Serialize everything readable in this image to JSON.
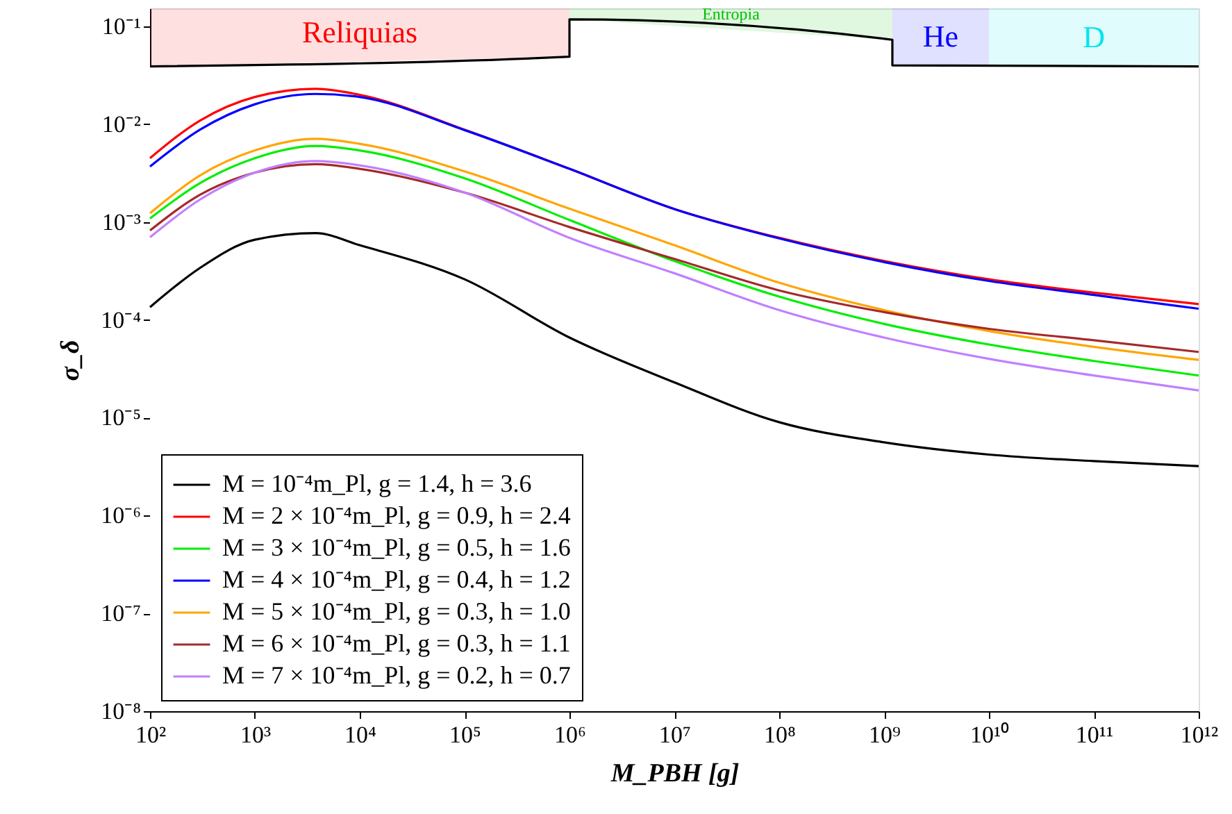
{
  "chart_data": {
    "type": "line",
    "xlabel": "M_PBH [g]",
    "ylabel": "σ_δ",
    "log": "xy",
    "grid": false,
    "legend": "bottom left",
    "line_style": "solid",
    "marker": "none",
    "x": [
      100,
      300,
      1000,
      3800,
      10000,
      100000,
      1000000,
      10000000,
      100000000,
      1000000000,
      10000000000,
      100000000000,
      1000000000000
    ],
    "xlim": [
      100,
      1000000000000
    ],
    "xticks": [
      {
        "value": 100,
        "label": "10²"
      },
      {
        "value": 1000,
        "label": "10³"
      },
      {
        "value": 10000,
        "label": "10⁴"
      },
      {
        "value": 100000,
        "label": "10⁵"
      },
      {
        "value": 1000000,
        "label": "10⁶"
      },
      {
        "value": 10000000,
        "label": "10⁷"
      },
      {
        "value": 100000000,
        "label": "10⁸"
      },
      {
        "value": 1000000000,
        "label": "10⁹"
      },
      {
        "value": 10000000000,
        "label": "10¹⁰"
      },
      {
        "value": 100000000000,
        "label": "10¹¹"
      },
      {
        "value": 1000000000000,
        "label": "10¹²"
      }
    ],
    "ylim": [
      1e-08,
      0.153
    ],
    "bands": [
      {
        "axis": "x",
        "from": 100,
        "to": 1000000,
        "label": "Reliquias",
        "color": "#ff0000"
      },
      {
        "axis": "x",
        "from": 1000000,
        "to": 1200000000,
        "label": "Entropia",
        "color": "#00c000"
      },
      {
        "axis": "x",
        "from": 1200000000,
        "to": 10000000000,
        "label": "He",
        "color": "#0000ff"
      },
      {
        "axis": "x",
        "from": 10000000000,
        "to": 1000000000000,
        "label": "D",
        "color": "#00e5ee"
      }
    ],
    "yticks": [
      {
        "value": 1e-08,
        "label": "10⁻⁸"
      },
      {
        "value": 1e-07,
        "label": "10⁻⁷"
      },
      {
        "value": 1e-06,
        "label": "10⁻⁶"
      },
      {
        "value": 1e-05,
        "label": "10⁻⁵"
      },
      {
        "value": 0.0001,
        "label": "10⁻⁴"
      },
      {
        "value": 0.001,
        "label": "10⁻³"
      },
      {
        "value": 0.01,
        "label": "10⁻²"
      },
      {
        "value": 0.1,
        "label": "10⁻¹"
      }
    ],
    "series": [
      {
        "color": "#000000",
        "x": [
          100,
          1000000,
          1000000,
          1200000000,
          1200000000,
          1000000000000
        ],
        "values": [
          0.039,
          0.049,
          0.118,
          0.073,
          0.04,
          0.039
        ]
      },
      {
        "name": "M = 10⁻⁴m_Pl, g = 1.4, h = 3.6",
        "color": "#000000",
        "values": [
          0.000135,
          0.00034,
          0.00066,
          0.00077,
          0.00058,
          0.00026,
          6.6e-05,
          2.3e-05,
          9e-06,
          5.6e-06,
          4.2e-06,
          3.6e-06,
          3.2e-06
        ]
      },
      {
        "name": "M = 2 × 10⁻⁴m_Pl, g = 0.9, h = 2.4",
        "color": "#ff0000",
        "values": [
          0.0045,
          0.0109,
          0.019,
          0.023,
          0.02,
          0.0088,
          0.0035,
          0.00136,
          0.00069,
          0.0004,
          0.00026,
          0.00019,
          0.000145
        ]
      },
      {
        "name": "M = 3 × 10⁻⁴m_Pl, g = 0.5, h = 1.6",
        "color": "#00ee00",
        "values": [
          0.00109,
          0.0025,
          0.0045,
          0.006,
          0.0054,
          0.0028,
          0.00105,
          0.0004,
          0.000173,
          9.1e-05,
          5.6e-05,
          3.8e-05,
          2.7e-05
        ]
      },
      {
        "name": "M = 4 × 10⁻⁴m_Pl, g = 0.4, h = 1.2",
        "color": "#0000ff",
        "values": [
          0.0037,
          0.0088,
          0.016,
          0.0204,
          0.019,
          0.0087,
          0.0035,
          0.00136,
          0.00068,
          0.00039,
          0.00025,
          0.00018,
          0.00013
        ]
      },
      {
        "name": "M = 5 × 10⁻⁴m_Pl, g = 0.3, h = 1.0",
        "color": "#ffa500",
        "values": [
          0.00123,
          0.003,
          0.0054,
          0.0071,
          0.0063,
          0.0033,
          0.00137,
          0.00058,
          0.00024,
          0.000126,
          7.7e-05,
          5.3e-05,
          3.9e-05
        ]
      },
      {
        "name": "M = 6 × 10⁻⁴m_Pl, g = 0.3, h = 1.1",
        "color": "#a52a2a",
        "values": [
          0.00082,
          0.0019,
          0.0032,
          0.0039,
          0.0035,
          0.002,
          0.00089,
          0.00042,
          0.0002,
          0.00012,
          8.1e-05,
          6.2e-05,
          4.7e-05
        ]
      },
      {
        "name": "M = 7 × 10⁻⁴m_Pl, g = 0.2, h = 0.7",
        "color": "#c080ff",
        "values": [
          0.0007,
          0.0017,
          0.0032,
          0.0042,
          0.0038,
          0.002,
          0.00069,
          0.0003,
          0.000126,
          6.6e-05,
          4e-05,
          2.7e-05,
          1.9e-05
        ]
      }
    ]
  }
}
